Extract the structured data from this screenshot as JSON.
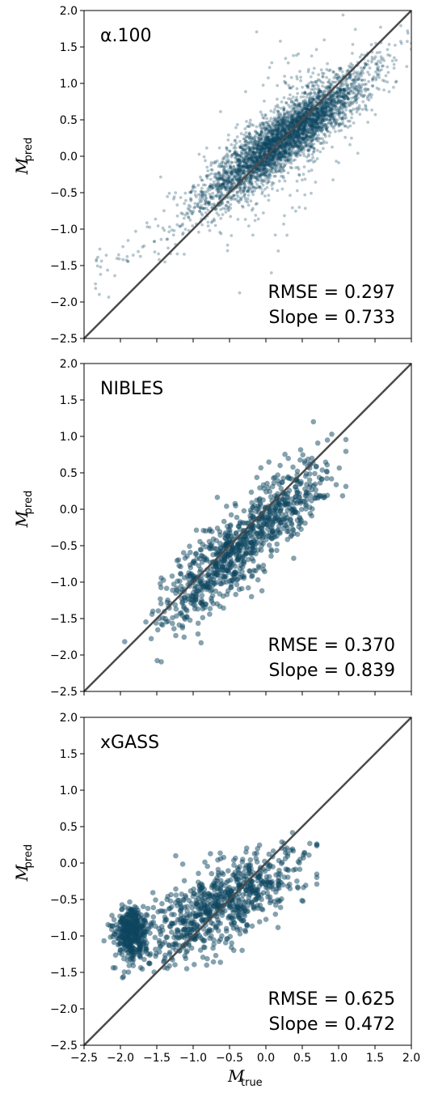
{
  "colors": {
    "point": "#0e4660",
    "identity_line": "#4a4a4a",
    "frame": "#000000"
  },
  "chart_data": [
    {
      "type": "scatter",
      "panel_label": "α.100",
      "rmse_text": "RMSE = 0.297",
      "slope_text": "Slope = 0.733",
      "ylabel_symbol": "M",
      "ylabel_sub": "pred",
      "xlim": [
        -2.5,
        2.0
      ],
      "ylim": [
        -2.5,
        2.0
      ],
      "yticks": [
        "−2.5",
        "−2.0",
        "−1.5",
        "−1.0",
        "−0.5",
        "0.0",
        "0.5",
        "1.0",
        "1.5",
        "2.0"
      ],
      "point_count": 4500,
      "point_alpha": 0.3,
      "point_radius": 1.9,
      "identity_line": true,
      "rmse": 0.297,
      "slope": 0.733,
      "x_range_data": [
        -2.35,
        2.0
      ],
      "bulk_intercept": 0.06,
      "noise_sd": 0.2
    },
    {
      "type": "scatter",
      "panel_label": "NIBLES",
      "rmse_text": "RMSE = 0.370",
      "slope_text": "Slope = 0.839",
      "ylabel_symbol": "M",
      "ylabel_sub": "pred",
      "xlim": [
        -2.5,
        2.0
      ],
      "ylim": [
        -2.5,
        2.0
      ],
      "yticks": [
        "−2.5",
        "−2.0",
        "−1.5",
        "−1.0",
        "−0.5",
        "0.0",
        "0.5",
        "1.0",
        "1.5",
        "2.0"
      ],
      "point_count": 900,
      "point_alpha": 0.5,
      "point_radius": 3.3,
      "identity_line": true,
      "rmse": 0.37,
      "slope": 0.839,
      "x_range_data": [
        -2.4,
        1.1
      ],
      "bulk_intercept": -0.2,
      "noise_sd": 0.27
    },
    {
      "type": "scatter",
      "panel_label": "xGASS",
      "rmse_text": "RMSE = 0.625",
      "slope_text": "Slope = 0.472",
      "ylabel_symbol": "M",
      "ylabel_sub": "pred",
      "xlabel_symbol": "M",
      "xlabel_sub": "true",
      "xlim": [
        -2.5,
        2.0
      ],
      "ylim": [
        -2.5,
        2.0
      ],
      "xticks": [
        "−2.5",
        "−2.0",
        "−1.5",
        "−1.0",
        "−0.5",
        "0.0",
        "0.5",
        "1.0",
        "1.5",
        "2.0"
      ],
      "yticks": [
        "−2.5",
        "−2.0",
        "−1.5",
        "−1.0",
        "−0.5",
        "0.0",
        "0.5",
        "1.0",
        "1.5",
        "2.0"
      ],
      "point_count": 1150,
      "point_alpha": 0.5,
      "point_radius": 3.3,
      "identity_line": true,
      "rmse": 0.625,
      "slope": 0.472,
      "x_range_data": [
        -2.1,
        0.7
      ],
      "bulk_intercept": -0.3,
      "noise_sd": 0.16
    }
  ]
}
